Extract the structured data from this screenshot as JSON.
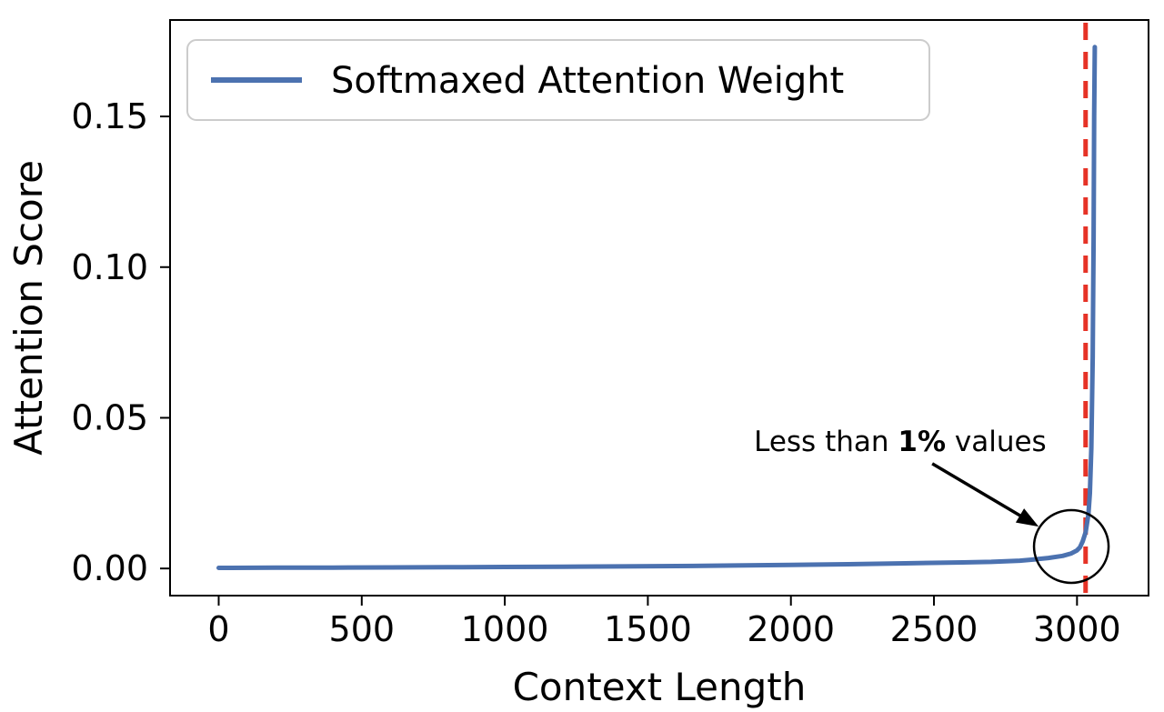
{
  "chart_data": {
    "type": "line",
    "title": "",
    "xlabel": "Context Length",
    "ylabel": "Attention Score",
    "xlim": [
      -170,
      3250
    ],
    "ylim": [
      -0.009,
      0.182
    ],
    "xticks": [
      0,
      500,
      1000,
      1500,
      2000,
      2500,
      3000
    ],
    "xtick_labels": [
      "0",
      "500",
      "1000",
      "1500",
      "2000",
      "2500",
      "3000"
    ],
    "yticks": [
      0,
      0.05,
      0.1,
      0.15
    ],
    "ytick_labels": [
      "0.00",
      "0.05",
      "0.10",
      "0.15"
    ],
    "grid": false,
    "legend": {
      "position": "upper-left",
      "entries": [
        {
          "label": "Softmaxed Attention Weight",
          "color": "#4C72B0"
        }
      ]
    },
    "series": [
      {
        "name": "Softmaxed Attention Weight",
        "color": "#4C72B0",
        "x": [
          0,
          200,
          400,
          600,
          800,
          1000,
          1200,
          1400,
          1600,
          1800,
          2000,
          2200,
          2400,
          2600,
          2700,
          2800,
          2850,
          2900,
          2950,
          2980,
          3000,
          3010,
          3020,
          3030,
          3040,
          3045,
          3050,
          3055,
          3058,
          3060,
          3062
        ],
        "y": [
          0.0002,
          0.00025,
          0.0003,
          0.00035,
          0.0004,
          0.0005,
          0.0006,
          0.0007,
          0.0008,
          0.001,
          0.0012,
          0.0014,
          0.0017,
          0.002,
          0.0022,
          0.0026,
          0.003,
          0.0035,
          0.0042,
          0.005,
          0.006,
          0.007,
          0.009,
          0.012,
          0.018,
          0.025,
          0.04,
          0.07,
          0.11,
          0.15,
          0.173
        ]
      }
    ],
    "vline": {
      "x": 3030,
      "color": "#e63226",
      "style": "dashed"
    },
    "annotation": {
      "text_parts": [
        "Less than ",
        "1%",
        " values"
      ],
      "bold_part": 1,
      "color": "#000000",
      "text_anchor": {
        "x": 2382,
        "y": 0.039
      },
      "arrow": {
        "from": {
          "x": 2494,
          "y": 0.0348
        },
        "to": {
          "x": 2866,
          "y": 0.0139
        }
      },
      "circle": {
        "x": 2980,
        "y": 0.0073,
        "rx": 41,
        "ry": 40
      }
    }
  }
}
